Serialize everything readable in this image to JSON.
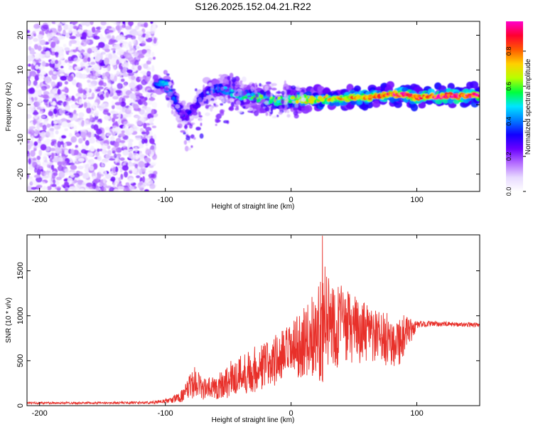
{
  "figure_title": "S126.2025.152.04.21.R22",
  "colors": {
    "snr_line": "#e8302a",
    "frame": "#000000",
    "colormap": [
      "#ffffff",
      "#e7d9ff",
      "#b46cff",
      "#6a00ff",
      "#1200ff",
      "#007bff",
      "#00e5ff",
      "#00ff3c",
      "#b8ff00",
      "#ffd000",
      "#ff5a00",
      "#ff0030",
      "#ff00cc"
    ]
  },
  "chart_data": [
    {
      "type": "heatmap",
      "title": "",
      "xlabel": "Height of straight line (km)",
      "ylabel": "Frequency (Hz)",
      "xlim": [
        -210,
        150
      ],
      "ylim": [
        -25,
        24
      ],
      "x_ticks": [
        -200,
        -100,
        0,
        100
      ],
      "y_ticks": [
        20,
        10,
        0,
        -10,
        -20
      ],
      "colorbar": {
        "label": "Normalized spectral amplitude",
        "range": [
          0,
          0.97
        ],
        "ticks": [
          0.0,
          0.2,
          0.4,
          0.6,
          0.8
        ]
      },
      "noise_region": {
        "x": [
          -210,
          -108
        ],
        "y": [
          -25,
          24
        ],
        "amplitude_range": [
          0.02,
          0.25
        ]
      },
      "ridge": {
        "x": [
          -108,
          -100,
          -95,
          -90,
          -85,
          -80,
          -75,
          -70,
          -60,
          -50,
          -40,
          -30,
          -20,
          -10,
          0,
          10,
          20,
          30,
          40,
          50,
          60,
          70,
          80,
          90,
          100,
          110,
          120,
          130,
          140,
          150
        ],
        "freq": [
          6,
          6,
          3,
          -1,
          -4,
          -2,
          0,
          3,
          5,
          4,
          2.5,
          2,
          1.5,
          1,
          1.5,
          1.5,
          1.5,
          1.5,
          1.8,
          2,
          2,
          2.5,
          3,
          3,
          2,
          2.2,
          2.4,
          2.5,
          2.6,
          2.8
        ],
        "amplitude": [
          0.35,
          0.55,
          0.45,
          0.35,
          0.3,
          0.3,
          0.3,
          0.35,
          0.4,
          0.45,
          0.5,
          0.55,
          0.6,
          0.6,
          0.65,
          0.7,
          0.7,
          0.72,
          0.75,
          0.8,
          0.82,
          0.85,
          0.88,
          0.9,
          0.92,
          0.92,
          0.94,
          0.95,
          0.96,
          0.97
        ]
      }
    },
    {
      "type": "line",
      "title": "",
      "xlabel": "Height of straight line (km)",
      "ylabel": "SNR (10 * v/v)",
      "xlim": [
        -210,
        150
      ],
      "ylim": [
        0,
        1900
      ],
      "x_ticks": [
        -200,
        -100,
        0,
        100
      ],
      "y_ticks": [
        0,
        500,
        1000,
        1500
      ],
      "series": [
        {
          "envelope_x": [
            -210,
            -150,
            -110,
            -95,
            -85,
            -80,
            -75,
            -70,
            -60,
            -50,
            -40,
            -30,
            -20,
            -10,
            0,
            10,
            20,
            25,
            30,
            40,
            50,
            60,
            70,
            80,
            90,
            95,
            100,
            110,
            130,
            150
          ],
          "envelope_mean": [
            30,
            30,
            35,
            60,
            120,
            220,
            280,
            180,
            200,
            280,
            350,
            400,
            450,
            520,
            600,
            700,
            800,
            900,
            950,
            900,
            850,
            800,
            750,
            720,
            750,
            820,
            900,
            910,
            905,
            900
          ],
          "envelope_amp": [
            12,
            12,
            15,
            30,
            80,
            150,
            180,
            120,
            140,
            200,
            230,
            260,
            280,
            300,
            320,
            380,
            500,
            650,
            600,
            450,
            380,
            330,
            300,
            300,
            280,
            150,
            40,
            30,
            25,
            25
          ],
          "peak": {
            "x": 25,
            "y": 1890
          }
        }
      ]
    }
  ]
}
